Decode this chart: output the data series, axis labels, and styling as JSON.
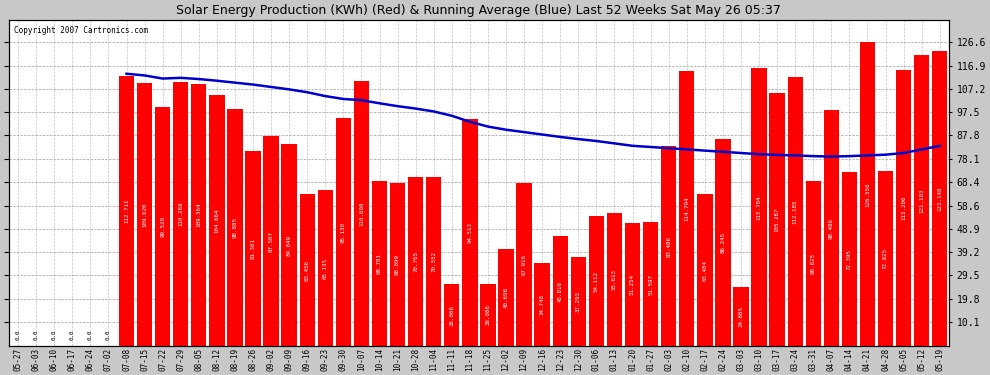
{
  "title": "Solar Energy Production (KWh) (Red) & Running Average (Blue) Last 52 Weeks Sat May 26 05:37",
  "copyright": "Copyright 2007 Cartronics.com",
  "bar_color": "#ff0000",
  "avg_color": "#0000cc",
  "background_color": "#c8c8c8",
  "plot_bg_color": "#ffffff",
  "ylim": [
    0,
    136
  ],
  "yticks_right": [
    10.1,
    19.8,
    29.5,
    39.2,
    48.9,
    58.6,
    68.4,
    78.1,
    87.8,
    97.5,
    107.2,
    116.9,
    126.6
  ],
  "categories": [
    "05-27",
    "06-03",
    "06-10",
    "06-17",
    "06-24",
    "07-02",
    "07-08",
    "07-15",
    "07-22",
    "07-29",
    "08-05",
    "08-12",
    "08-19",
    "08-26",
    "09-02",
    "09-09",
    "09-16",
    "09-23",
    "09-30",
    "10-07",
    "10-14",
    "10-21",
    "10-28",
    "11-04",
    "11-11",
    "11-18",
    "11-25",
    "12-02",
    "12-09",
    "12-16",
    "12-23",
    "12-30",
    "01-06",
    "01-13",
    "01-20",
    "01-27",
    "02-03",
    "02-10",
    "02-17",
    "02-24",
    "03-03",
    "03-10",
    "03-17",
    "03-24",
    "03-31",
    "04-07",
    "04-14",
    "04-21",
    "04-28",
    "05-05",
    "05-12",
    "05-19"
  ],
  "values": [
    0.0,
    0.0,
    0.0,
    0.0,
    0.0,
    0.0,
    112.711,
    109.62,
    99.52,
    110.269,
    109.364,
    104.664,
    98.885,
    81.361,
    87.507,
    84.049,
    63.456,
    65.135,
    95.13,
    110.608,
    68.781,
    68.099,
    70.705,
    70.552,
    26.066,
    94.513,
    26.086,
    40.698,
    67.916,
    34.748,
    45.816,
    37.293,
    54.112,
    55.613,
    51.254,
    51.597,
    83.486,
    114.794,
    63.404,
    86.245,
    24.865,
    115.704,
    105.287,
    112.185,
    68.825,
    98.486,
    72.395,
    126.55,
    72.925,
    115.206,
    121.103,
    123.148
  ],
  "running_avg": [
    null,
    null,
    null,
    null,
    null,
    null,
    113.5,
    112.8,
    111.5,
    111.8,
    111.3,
    110.6,
    109.8,
    109.0,
    108.0,
    107.0,
    105.8,
    104.2,
    103.0,
    102.5,
    101.2,
    100.0,
    99.0,
    97.8,
    96.0,
    93.5,
    91.5,
    90.2,
    89.2,
    88.2,
    87.2,
    86.3,
    85.5,
    84.5,
    83.5,
    83.0,
    82.5,
    82.0,
    81.5,
    81.0,
    80.5,
    80.0,
    79.7,
    79.5,
    79.2,
    79.0,
    79.2,
    79.5,
    79.8,
    80.5,
    82.0,
    83.5
  ],
  "value_labels": [
    "0.0",
    "0.0",
    "0.0",
    "0.0",
    "0.0",
    "0.0",
    "112.711",
    "109.620",
    "99.520",
    "110.269",
    "109.364",
    "104.664",
    "98.885",
    "81.361",
    "87.507",
    "84.049",
    "63.456",
    "65.135",
    "95.130",
    "110.608",
    "68.781",
    "68.099",
    "70.705",
    "70.552",
    "26.066",
    "94.513",
    "26.086",
    "40.698",
    "67.916",
    "34.748",
    "45.816",
    "37.293",
    "54.112",
    "55.613",
    "51.254",
    "51.597",
    "83.486",
    "114.794",
    "63.404",
    "86.245",
    "24.865",
    "115.704",
    "105.287",
    "112.185",
    "68.825",
    "98.486",
    "72.395",
    "126.550",
    "72.925",
    "115.206",
    "121.103",
    "123.148"
  ]
}
